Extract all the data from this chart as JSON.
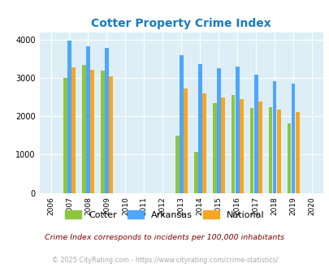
{
  "title": "Cotter Property Crime Index",
  "years": [
    2006,
    2007,
    2008,
    2009,
    2010,
    2011,
    2012,
    2013,
    2014,
    2015,
    2016,
    2017,
    2018,
    2019,
    2020
  ],
  "cotter": [
    null,
    3000,
    3350,
    3200,
    null,
    null,
    null,
    1490,
    1070,
    2350,
    2550,
    2220,
    2230,
    1820,
    null
  ],
  "arkansas": [
    null,
    3970,
    3830,
    3780,
    null,
    null,
    null,
    3600,
    3370,
    3260,
    3300,
    3090,
    2920,
    2860,
    null
  ],
  "national": [
    null,
    3270,
    3210,
    3040,
    null,
    null,
    null,
    2730,
    2600,
    2500,
    2460,
    2380,
    2180,
    2110,
    null
  ],
  "bar_width": 0.22,
  "ylim": [
    0,
    4200
  ],
  "yticks": [
    0,
    1000,
    2000,
    3000,
    4000
  ],
  "xlim": [
    2005.4,
    2020.6
  ],
  "colors": {
    "cotter": "#8dc63f",
    "arkansas": "#4da6ff",
    "national": "#f5a623"
  },
  "bg_color": "#ddeef6",
  "grid_color": "#ffffff",
  "subtitle": "Crime Index corresponds to incidents per 100,000 inhabitants",
  "footnote": "© 2025 CityRating.com - https://www.cityrating.com/crime-statistics/",
  "title_color": "#1a7abf",
  "subtitle_color": "#800000",
  "footnote_color": "#aaaaaa"
}
